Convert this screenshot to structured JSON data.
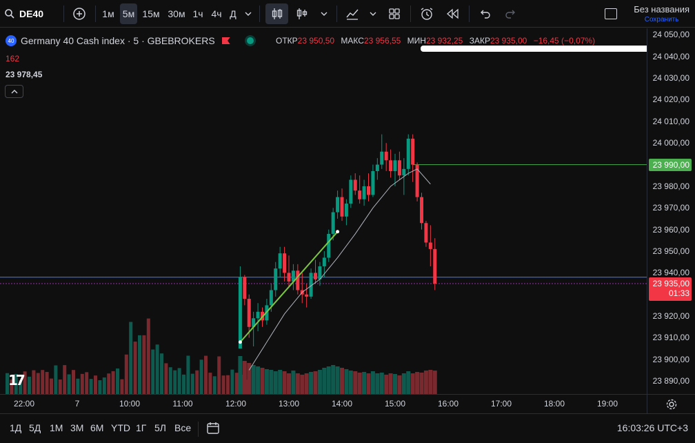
{
  "toolbar": {
    "symbol": "DE40",
    "intervals": [
      "1м",
      "5м",
      "15м",
      "30м",
      "1ч",
      "4ч",
      "Д"
    ],
    "active_interval": "5м",
    "layout_title": "Без названия",
    "layout_status": "Сохранить",
    "icons": [
      "search-icon",
      "add-symbol-icon",
      "chevron-down-icon",
      "candles-icon",
      "indicators-icon",
      "layouts-icon",
      "alert-icon",
      "replay-icon",
      "undo-icon",
      "redo-icon"
    ]
  },
  "legend": {
    "badge": "40",
    "title": "Germany 40 Cash index · 5 · GBEBROKERS",
    "open_label": "ОТКР",
    "open": "23 950,50",
    "high_label": "МАКС",
    "high": "23 956,55",
    "low_label": "МИН",
    "low": "23 932,25",
    "close_label": "ЗАКР",
    "close": "23 935,00",
    "change": "−16,45 (−0,07%)",
    "volume": "162",
    "ma_value": "23 978,45"
  },
  "price_axis": {
    "ticks": [
      "24 050,00",
      "24 040,00",
      "24 030,00",
      "24 020,00",
      "24 010,00",
      "24 000,00",
      "23 980,00",
      "23 970,00",
      "23 960,00",
      "23 950,00",
      "23 940,00",
      "23 920,00",
      "23 910,00",
      "23 900,00",
      "23 890,00"
    ],
    "level_tag": "23 990,00",
    "last_price": "23 935,00",
    "countdown": "01:33"
  },
  "time_axis": {
    "labels": [
      "22:00",
      "7",
      "10:00",
      "11:00",
      "12:00",
      "13:00",
      "14:00",
      "15:00",
      "16:00",
      "17:00",
      "18:00",
      "19:00"
    ]
  },
  "bottom_bar": {
    "ranges": [
      "1Д",
      "5Д",
      "1М",
      "3М",
      "6М",
      "YTD",
      "1Г",
      "5Л",
      "Все"
    ],
    "clock": "16:03:26 UTC+3"
  },
  "colors": {
    "up": "#089981",
    "down": "#f23645",
    "level": "#4caf50",
    "hline": "#2962ff",
    "bg": "#0f0f0f"
  },
  "chart_data": {
    "type": "candlestick",
    "price_range": [
      23884,
      24053
    ],
    "bars": [
      {
        "t": "12:05",
        "o": 23905,
        "h": 23943,
        "l": 23905,
        "c": 23938,
        "v": 0.55
      },
      {
        "t": "12:10",
        "o": 23938,
        "h": 23939,
        "l": 23925,
        "c": 23928,
        "v": 0.48
      },
      {
        "t": "12:15",
        "o": 23928,
        "h": 23930,
        "l": 23910,
        "c": 23915,
        "v": 0.45
      },
      {
        "t": "12:20",
        "o": 23915,
        "h": 23922,
        "l": 23906,
        "c": 23919,
        "v": 0.42
      },
      {
        "t": "12:25",
        "o": 23919,
        "h": 23926,
        "l": 23913,
        "c": 23922,
        "v": 0.4
      },
      {
        "t": "12:30",
        "o": 23922,
        "h": 23924,
        "l": 23915,
        "c": 23918,
        "v": 0.38
      },
      {
        "t": "12:35",
        "o": 23918,
        "h": 23928,
        "l": 23916,
        "c": 23925,
        "v": 0.36
      },
      {
        "t": "12:40",
        "o": 23925,
        "h": 23935,
        "l": 23922,
        "c": 23932,
        "v": 0.35
      },
      {
        "t": "12:45",
        "o": 23932,
        "h": 23945,
        "l": 23929,
        "c": 23942,
        "v": 0.33
      },
      {
        "t": "12:50",
        "o": 23942,
        "h": 23952,
        "l": 23938,
        "c": 23949,
        "v": 0.35
      },
      {
        "t": "12:55",
        "o": 23949,
        "h": 23952,
        "l": 23936,
        "c": 23940,
        "v": 0.33
      },
      {
        "t": "13:00",
        "o": 23940,
        "h": 23948,
        "l": 23933,
        "c": 23936,
        "v": 0.3
      },
      {
        "t": "13:05",
        "o": 23936,
        "h": 23944,
        "l": 23932,
        "c": 23941,
        "v": 0.34
      },
      {
        "t": "13:10",
        "o": 23941,
        "h": 23944,
        "l": 23930,
        "c": 23932,
        "v": 0.3
      },
      {
        "t": "13:15",
        "o": 23932,
        "h": 23940,
        "l": 23926,
        "c": 23930,
        "v": 0.28
      },
      {
        "t": "13:20",
        "o": 23930,
        "h": 23935,
        "l": 23924,
        "c": 23929,
        "v": 0.3
      },
      {
        "t": "13:25",
        "o": 23929,
        "h": 23942,
        "l": 23928,
        "c": 23940,
        "v": 0.32
      },
      {
        "t": "13:30",
        "o": 23940,
        "h": 23946,
        "l": 23935,
        "c": 23937,
        "v": 0.33
      },
      {
        "t": "13:35",
        "o": 23937,
        "h": 23945,
        "l": 23934,
        "c": 23943,
        "v": 0.35
      },
      {
        "t": "13:40",
        "o": 23943,
        "h": 23950,
        "l": 23938,
        "c": 23947,
        "v": 0.38
      },
      {
        "t": "13:45",
        "o": 23947,
        "h": 23960,
        "l": 23945,
        "c": 23958,
        "v": 0.4
      },
      {
        "t": "13:50",
        "o": 23958,
        "h": 23970,
        "l": 23955,
        "c": 23968,
        "v": 0.42
      },
      {
        "t": "13:55",
        "o": 23968,
        "h": 23978,
        "l": 23965,
        "c": 23975,
        "v": 0.4
      },
      {
        "t": "14:00",
        "o": 23975,
        "h": 23979,
        "l": 23964,
        "c": 23966,
        "v": 0.38
      },
      {
        "t": "14:05",
        "o": 23966,
        "h": 23974,
        "l": 23962,
        "c": 23972,
        "v": 0.36
      },
      {
        "t": "14:10",
        "o": 23972,
        "h": 23985,
        "l": 23970,
        "c": 23983,
        "v": 0.34
      },
      {
        "t": "14:15",
        "o": 23983,
        "h": 23986,
        "l": 23976,
        "c": 23978,
        "v": 0.33
      },
      {
        "t": "14:20",
        "o": 23978,
        "h": 23985,
        "l": 23972,
        "c": 23974,
        "v": 0.31
      },
      {
        "t": "14:25",
        "o": 23974,
        "h": 23983,
        "l": 23971,
        "c": 23980,
        "v": 0.32
      },
      {
        "t": "14:30",
        "o": 23980,
        "h": 23986,
        "l": 23973,
        "c": 23976,
        "v": 0.3
      },
      {
        "t": "14:35",
        "o": 23976,
        "h": 23990,
        "l": 23975,
        "c": 23987,
        "v": 0.33
      },
      {
        "t": "14:40",
        "o": 23987,
        "h": 23993,
        "l": 23983,
        "c": 23990,
        "v": 0.3
      },
      {
        "t": "14:45",
        "o": 23990,
        "h": 24004,
        "l": 23988,
        "c": 23996,
        "v": 0.31
      },
      {
        "t": "14:50",
        "o": 23996,
        "h": 24000,
        "l": 23987,
        "c": 23992,
        "v": 0.28
      },
      {
        "t": "14:55",
        "o": 23992,
        "h": 23997,
        "l": 23984,
        "c": 23987,
        "v": 0.3
      },
      {
        "t": "15:00",
        "o": 23987,
        "h": 23995,
        "l": 23980,
        "c": 23992,
        "v": 0.29
      },
      {
        "t": "15:05",
        "o": 23992,
        "h": 23996,
        "l": 23983,
        "c": 23985,
        "v": 0.27
      },
      {
        "t": "15:10",
        "o": 23985,
        "h": 23993,
        "l": 23976,
        "c": 23988,
        "v": 0.3
      },
      {
        "t": "15:15",
        "o": 23988,
        "h": 24004,
        "l": 23985,
        "c": 24002,
        "v": 0.33
      },
      {
        "t": "15:20",
        "o": 24002,
        "h": 24004,
        "l": 23982,
        "c": 23990,
        "v": 0.3
      },
      {
        "t": "15:25",
        "o": 23990,
        "h": 23991,
        "l": 23973,
        "c": 23975,
        "v": 0.32
      },
      {
        "t": "15:30",
        "o": 23975,
        "h": 23977,
        "l": 23960,
        "c": 23963,
        "v": 0.31
      },
      {
        "t": "15:35",
        "o": 23963,
        "h": 23964,
        "l": 23952,
        "c": 23954,
        "v": 0.34
      },
      {
        "t": "15:40",
        "o": 23954,
        "h": 23962,
        "l": 23943,
        "c": 23951,
        "v": 0.35
      },
      {
        "t": "15:45",
        "o": 23951,
        "h": 23956,
        "l": 23932,
        "c": 23935,
        "v": 0.34
      }
    ],
    "ma_points": [
      {
        "t": "12:15",
        "p": 23895
      },
      {
        "t": "12:35",
        "p": 23908
      },
      {
        "t": "12:55",
        "p": 23921
      },
      {
        "t": "13:15",
        "p": 23931
      },
      {
        "t": "13:35",
        "p": 23937
      },
      {
        "t": "13:55",
        "p": 23947
      },
      {
        "t": "14:15",
        "p": 23958
      },
      {
        "t": "14:35",
        "p": 23970
      },
      {
        "t": "14:55",
        "p": 23980
      },
      {
        "t": "15:15",
        "p": 23986
      },
      {
        "t": "15:25",
        "p": 23988
      },
      {
        "t": "15:40",
        "p": 23981
      }
    ],
    "trendline": {
      "from": {
        "t": "12:05",
        "p": 23908
      },
      "to": {
        "t": "13:55",
        "p": 23959
      }
    },
    "levels": {
      "horizontal_ray": 23990,
      "blue_line": 23938,
      "last_price": 23935
    }
  }
}
